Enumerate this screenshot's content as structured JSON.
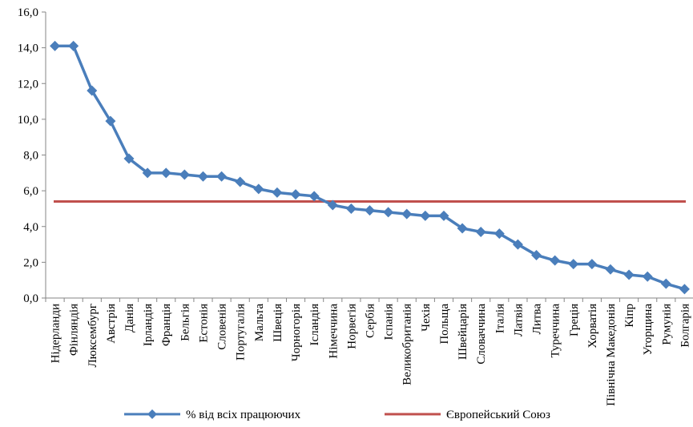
{
  "chart_data": {
    "type": "line",
    "categories": [
      "Нідерланди",
      "Фінляндія",
      "Люксембург",
      "Австрія",
      "Данія",
      "Ірландія",
      "Франція",
      "Бельгія",
      "Естонія",
      "Словенія",
      "Португалія",
      "Мальта",
      "Швеція",
      "Чорногорія",
      "Ісландія",
      "Німеччина",
      "Норвегія",
      "Сербія",
      "Іспанія",
      "Великобританія",
      "Чехія",
      "Польща",
      "Швейцарія",
      "Словаччина",
      "Італія",
      "Латвія",
      "Литва",
      "Туреччина",
      "Греція",
      "Хорватія",
      "Північна Македонія",
      "Кіпр",
      "Угорщина",
      "Румунія",
      "Болгарія"
    ],
    "series": [
      {
        "name": "% від всіх працюючих",
        "color": "#4a7ebb",
        "marker": "diamond",
        "values": [
          14.1,
          14.1,
          11.6,
          9.9,
          7.8,
          7.0,
          7.0,
          6.9,
          6.8,
          6.8,
          6.5,
          6.1,
          5.9,
          5.8,
          5.7,
          5.2,
          5.0,
          4.9,
          4.8,
          4.7,
          4.6,
          4.6,
          3.9,
          3.7,
          3.6,
          3.0,
          2.4,
          2.1,
          1.9,
          1.9,
          1.6,
          1.3,
          1.2,
          0.8,
          0.5
        ]
      },
      {
        "name": "Європейський Союз",
        "color": "#c0504d",
        "constant": 5.4
      }
    ],
    "ylim": [
      0,
      16
    ],
    "yticks": [
      "0,0",
      "2,0",
      "4,0",
      "6,0",
      "8,0",
      "10,0",
      "12,0",
      "14,0",
      "16,0"
    ],
    "legend_position": "bottom",
    "grid": false
  }
}
